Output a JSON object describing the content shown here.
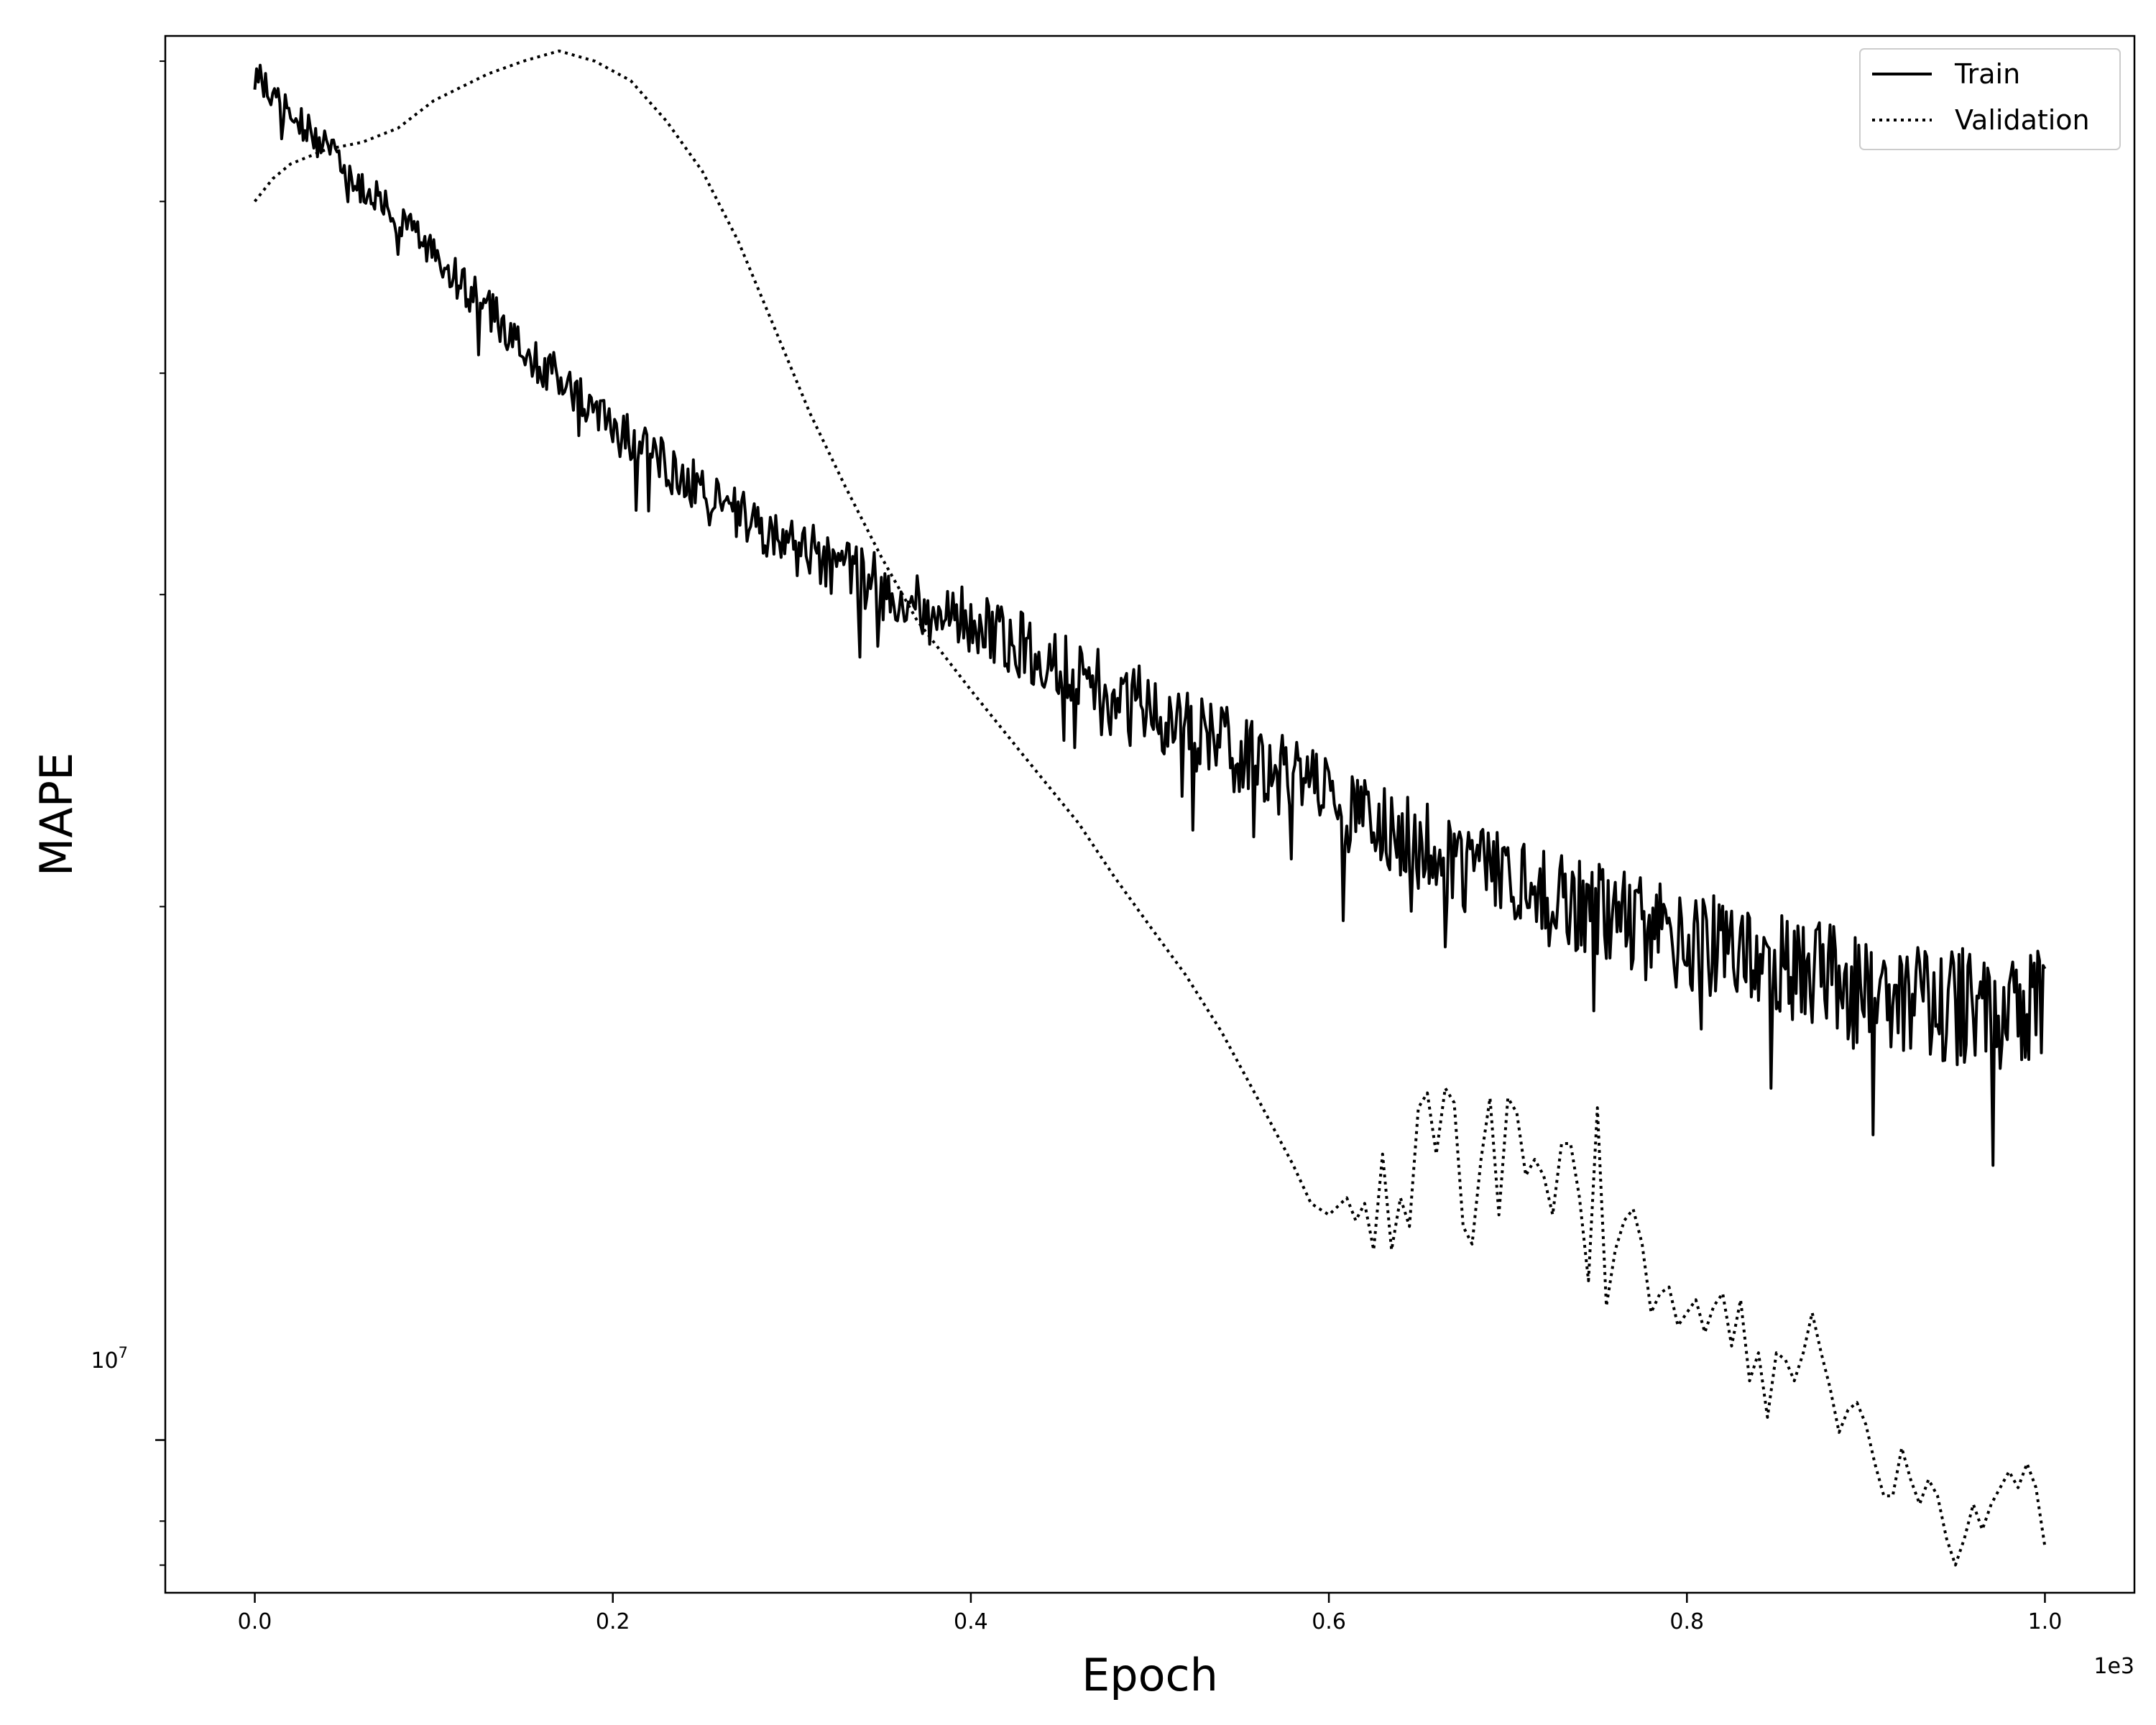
{
  "chart_data": {
    "type": "line",
    "title": "",
    "xlabel": "Epoch",
    "ylabel": "MAPE",
    "x_offset_label": "1e3",
    "x_scale_factor": 1000,
    "y_scale": "log",
    "xlim": [
      -50,
      1050
    ],
    "ylim": [
      8200000,
      62000000
    ],
    "x_ticks": [
      0,
      200,
      400,
      600,
      800,
      1000
    ],
    "x_tick_labels": [
      "0.0",
      "0.2",
      "0.4",
      "0.6",
      "0.8",
      "1.0"
    ],
    "y_major_tick": {
      "value": 10000000,
      "base": "10",
      "exp": "7"
    },
    "y_minor_ticks": [
      9000000,
      8500000,
      20000000,
      30000000,
      40000000,
      50000000,
      60000000
    ],
    "legend": {
      "position": "top-right",
      "entries": [
        {
          "label": "Train",
          "style": "solid"
        },
        {
          "label": "Validation",
          "style": "dotted"
        }
      ]
    },
    "series": [
      {
        "name": "Train",
        "style": "solid",
        "color": "#000000",
        "x": [
          0,
          20,
          40,
          60,
          80,
          100,
          120,
          140,
          160,
          180,
          200,
          220,
          240,
          260,
          280,
          300,
          320,
          340,
          360,
          380,
          400,
          420,
          440,
          460,
          480,
          500,
          520,
          540,
          560,
          580,
          600,
          620,
          640,
          660,
          680,
          700,
          720,
          740,
          760,
          780,
          800,
          820,
          840,
          860,
          880,
          900,
          920,
          940,
          960,
          980,
          1000
        ],
        "y": [
          59000000,
          56000000,
          53500000,
          51000000,
          48800000,
          46500000,
          44500000,
          42400000,
          40500000,
          38800000,
          37300000,
          36000000,
          34800000,
          33700000,
          32800000,
          32000000,
          31300000,
          30600000,
          30000000,
          29500000,
          29000000,
          28400000,
          27800000,
          27200000,
          26500000,
          25900000,
          25300000,
          24700000,
          24100000,
          23500000,
          22900000,
          22300000,
          21900000,
          21400000,
          21000000,
          20600000,
          20300000,
          20000000,
          19700000,
          19400000,
          19200000,
          18900000,
          18600000,
          18400000,
          18200000,
          18000000,
          17800000,
          17600000,
          17500000,
          17400000,
          17600000
        ],
        "noise_amplitude": 0.035
      },
      {
        "name": "Validation",
        "style": "dotted",
        "color": "#000000",
        "x": [
          0,
          10,
          20,
          40,
          60,
          80,
          100,
          130,
          150,
          170,
          190,
          210,
          230,
          250,
          270,
          290,
          310,
          330,
          350,
          370,
          400,
          430,
          460,
          480,
          500,
          520,
          540,
          560,
          580,
          590,
          600,
          610,
          615,
          620,
          625,
          630,
          635,
          640,
          645,
          650,
          655,
          660,
          665,
          670,
          675,
          680,
          685,
          690,
          695,
          700,
          705,
          710,
          715,
          720,
          725,
          730,
          735,
          740,
          745,
          750,
          755,
          760,
          765,
          770,
          775,
          780,
          785,
          790,
          795,
          800,
          805,
          810,
          815,
          820,
          825,
          830,
          835,
          840,
          845,
          850,
          855,
          860,
          865,
          870,
          875,
          880,
          885,
          890,
          895,
          900,
          905,
          910,
          915,
          920,
          925,
          930,
          935,
          940,
          945,
          950,
          955,
          960,
          965,
          970,
          975,
          980,
          985,
          990,
          995,
          1000
        ],
        "y": [
          50000000,
          51500000,
          52500000,
          53500000,
          54000000,
          55000000,
          57000000,
          59000000,
          60000000,
          60800000,
          60000000,
          58500000,
          55500000,
          52000000,
          47500000,
          42500000,
          38000000,
          34500000,
          31500000,
          29000000,
          26500000,
          24300000,
          22300000,
          20800000,
          19500000,
          18300000,
          17000000,
          15600000,
          14300000,
          13600000,
          13400000,
          13700000,
          13300000,
          13600000,
          12800000,
          14500000,
          12800000,
          13700000,
          13200000,
          15400000,
          15700000,
          14500000,
          15800000,
          15500000,
          13200000,
          12900000,
          14400000,
          15600000,
          13400000,
          15600000,
          15300000,
          14100000,
          14400000,
          14100000,
          13400000,
          14700000,
          14700000,
          13700000,
          12300000,
          15400000,
          11900000,
          12800000,
          13300000,
          13500000,
          12900000,
          11800000,
          12100000,
          12200000,
          11600000,
          11800000,
          12000000,
          11500000,
          11900000,
          12100000,
          11300000,
          12000000,
          10800000,
          11200000,
          10300000,
          11200000,
          11100000,
          10800000,
          11200000,
          11800000,
          11200000,
          10700000,
          10100000,
          10400000,
          10500000,
          10200000,
          9700000,
          9300000,
          9300000,
          9900000,
          9500000,
          9200000,
          9500000,
          9300000,
          8800000,
          8500000,
          8800000,
          9200000,
          8900000,
          9200000,
          9400000,
          9600000,
          9400000,
          9700000,
          9400000,
          8700000
        ]
      }
    ]
  }
}
